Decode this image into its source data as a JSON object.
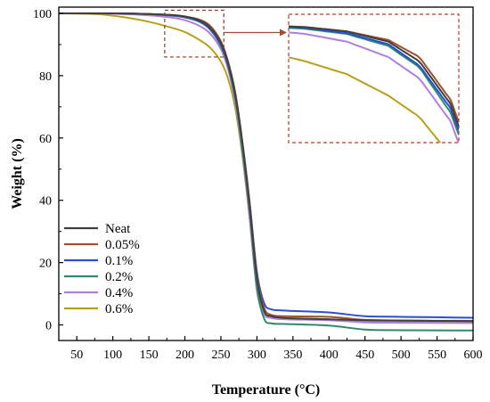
{
  "chart_data": {
    "type": "line",
    "xlabel": "Temperature (°C)",
    "ylabel": "Weight (%)",
    "xlim": [
      25,
      600
    ],
    "ylim": [
      -5,
      102
    ],
    "x_ticks": [
      50,
      100,
      150,
      200,
      250,
      300,
      350,
      400,
      450,
      500,
      550,
      600
    ],
    "y_ticks": [
      0,
      20,
      40,
      60,
      80,
      100
    ],
    "grid": false,
    "legend_position": "lower-left",
    "series": [
      {
        "name": "Neat",
        "color": "#404040",
        "x": [
          25,
          100,
          150,
          180,
          200,
          220,
          235,
          250,
          260,
          270,
          280,
          290,
          300,
          310,
          320,
          340,
          400,
          450,
          500,
          600
        ],
        "y": [
          100,
          100,
          99.8,
          99.5,
          99,
          97.8,
          95.5,
          90.5,
          84,
          74,
          58,
          38,
          15,
          4.5,
          2.8,
          2.2,
          1.8,
          1.5,
          1.4,
          1.2
        ]
      },
      {
        "name": "0.05%",
        "color": "#A0522D",
        "x": [
          25,
          100,
          150,
          180,
          200,
          220,
          235,
          250,
          260,
          270,
          280,
          290,
          300,
          310,
          320,
          340,
          400,
          450,
          500,
          600
        ],
        "y": [
          100,
          100,
          99.8,
          99.5,
          99,
          98,
          96,
          91,
          84.5,
          74.5,
          58.5,
          39,
          16,
          5.5,
          3.2,
          2.8,
          2.6,
          1.6,
          1.4,
          1.3
        ]
      },
      {
        "name": "0.1%",
        "color": "#2B4FD0",
        "x": [
          25,
          100,
          150,
          180,
          200,
          220,
          235,
          250,
          260,
          270,
          280,
          290,
          300,
          310,
          320,
          340,
          400,
          450,
          500,
          600
        ],
        "y": [
          100,
          100,
          99.8,
          99.4,
          98.8,
          97.5,
          95,
          90,
          83.5,
          73.5,
          58,
          39,
          17,
          7,
          5,
          4.6,
          4,
          2.8,
          2.6,
          2.3
        ]
      },
      {
        "name": "0.2%",
        "color": "#2E8B6A",
        "x": [
          25,
          100,
          150,
          180,
          200,
          220,
          235,
          250,
          260,
          270,
          280,
          290,
          300,
          310,
          320,
          340,
          400,
          450,
          500,
          600
        ],
        "y": [
          100,
          100,
          99.7,
          99.3,
          98.7,
          97.3,
          94.8,
          89.5,
          83,
          72.5,
          56,
          36,
          12,
          2,
          0.5,
          0.3,
          -0.2,
          -1.5,
          -1.7,
          -1.8
        ]
      },
      {
        "name": "0.4%",
        "color": "#B07FE0",
        "x": [
          25,
          100,
          150,
          180,
          200,
          220,
          235,
          250,
          260,
          270,
          280,
          290,
          300,
          310,
          320,
          340,
          400,
          450,
          500,
          600
        ],
        "y": [
          100,
          99.9,
          99.4,
          98.7,
          97.8,
          96,
          93.5,
          88.5,
          82,
          71.5,
          55,
          34,
          11,
          3.5,
          2.2,
          1.8,
          1.5,
          0.8,
          0.7,
          0.6
        ]
      },
      {
        "name": "0.6%",
        "color": "#B8A01C",
        "x": [
          25,
          80,
          120,
          150,
          180,
          200,
          220,
          235,
          250,
          260,
          270,
          280,
          290,
          300,
          310,
          320,
          340,
          400,
          450,
          500,
          600
        ],
        "y": [
          100,
          99.7,
          98.6,
          97.3,
          95.5,
          94,
          91.5,
          89,
          84.5,
          79,
          69.5,
          54,
          34,
          12,
          4,
          2.5,
          2.2,
          1.8,
          1.2,
          1,
          0.9
        ]
      }
    ],
    "inset": {
      "source_region": {
        "x": [
          172,
          254
        ],
        "y": [
          86,
          101
        ]
      }
    }
  }
}
